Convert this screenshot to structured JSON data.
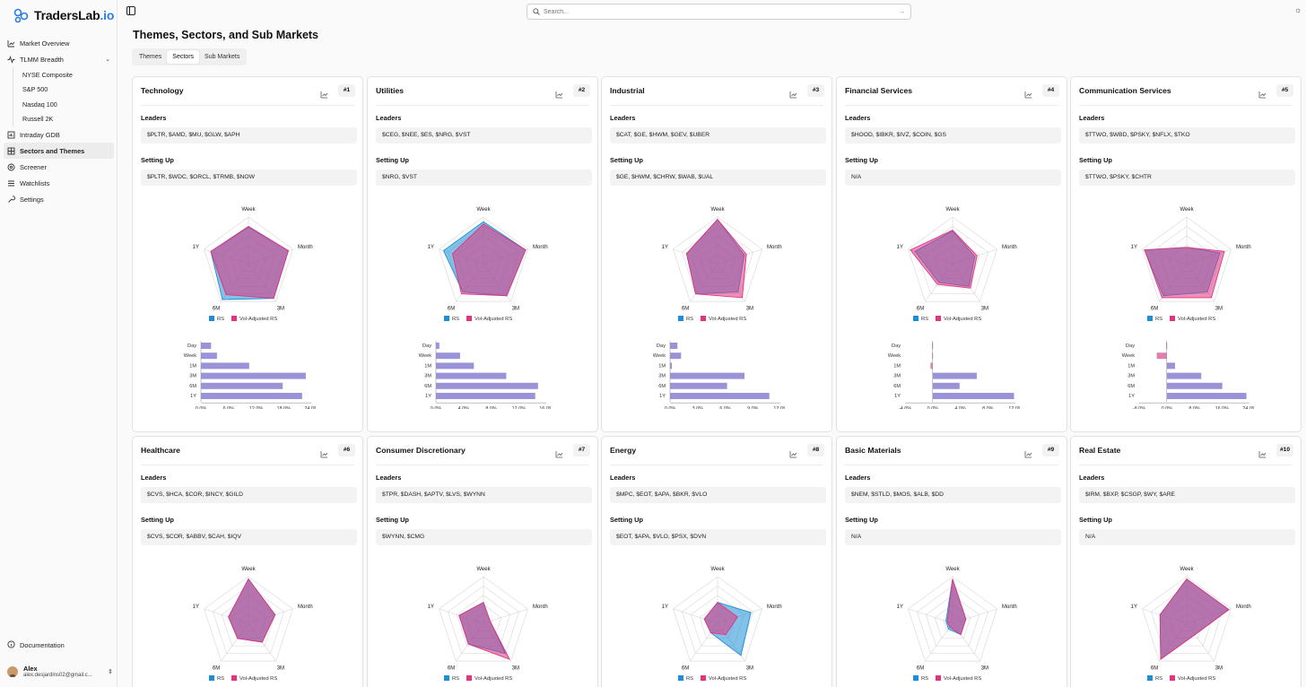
{
  "app": {
    "logo_main": "TradersLab",
    "logo_suffix": ".io"
  },
  "sidebar": {
    "items": [
      {
        "label": "Market Overview",
        "icon": "chart-line-icon"
      },
      {
        "label": "TLMM Breadth",
        "icon": "activity-icon",
        "expanded": true
      },
      {
        "label": "Intraday GDB",
        "icon": "chart-bar-icon"
      },
      {
        "label": "Sectors and Themes",
        "icon": "grid-icon",
        "active": true
      },
      {
        "label": "Screener",
        "icon": "filter-icon"
      },
      {
        "label": "Watchlists",
        "icon": "list-icon"
      },
      {
        "label": "Settings",
        "icon": "wrench-icon"
      }
    ],
    "sub_items": [
      "NYSE Composite",
      "S&P 500",
      "Nasdaq 100",
      "Russell 2K"
    ],
    "documentation": "Documentation",
    "user": {
      "name": "Alex",
      "email": "alex.desjardins02@gmail.c..."
    }
  },
  "search": {
    "placeholder": "Search..."
  },
  "page": {
    "title": "Themes, Sectors, and Sub Markets",
    "tabs": [
      "Themes",
      "Sectors",
      "Sub Markets"
    ],
    "active_tab": "Sectors"
  },
  "labels": {
    "leaders": "Leaders",
    "setting_up": "Setting Up"
  },
  "radar_axes": [
    "Week",
    "Month",
    "3M",
    "6M",
    "1Y"
  ],
  "legend": {
    "rs": "RS",
    "vol_rs": "Vol-Adjusted RS"
  },
  "bar_periods": [
    "Day",
    "Week",
    "1M",
    "3M",
    "6M",
    "1Y"
  ],
  "colors": {
    "rs": "#1e8fd6",
    "vol_rs": "#e0357f",
    "overlap": "#8b7ac7",
    "bar": "#9b93d8"
  },
  "sectors": [
    {
      "name": "Technology",
      "rank": "#1",
      "leaders": "$PLTR, $AMD, $MU, $GLW, $APH",
      "setting_up": "$PLTR, $WDC, $ORCL, $TRMB, $NOW",
      "rs": [
        0.78,
        0.9,
        0.92,
        0.95,
        0.85
      ],
      "vol_rs": [
        0.8,
        0.9,
        0.92,
        0.82,
        0.85
      ],
      "bars": [
        2.2,
        3.5,
        10.5,
        22.8,
        17.8,
        22.0
      ],
      "ticks": [
        "0.0%",
        "6.0%",
        "12.0%",
        "18.0%",
        "24.0%"
      ],
      "xmin": 0,
      "xmax": 24
    },
    {
      "name": "Utilities",
      "rank": "#2",
      "leaders": "$CEG, $NEE, $ES, $NRG, $VST",
      "setting_up": "$NRG, $VST",
      "rs": [
        0.9,
        0.95,
        0.85,
        0.75,
        0.9
      ],
      "vol_rs": [
        0.85,
        0.95,
        0.85,
        0.8,
        0.7
      ],
      "bars": [
        0.5,
        3.5,
        5.5,
        10.2,
        14.8,
        14.4
      ],
      "ticks": [
        "0.0%",
        "4.0%",
        "8.0%",
        "12.0%",
        "16.0%"
      ],
      "xmin": 0,
      "xmax": 16
    },
    {
      "name": "Industrial",
      "rank": "#3",
      "leaders": "$CAT, $GE, $HWM, $GEV, $UBER",
      "setting_up": "$GE, $HWM, $CHRW, $WAB, $UAL",
      "rs": [
        0.95,
        0.6,
        0.75,
        0.8,
        0.7
      ],
      "vol_rs": [
        0.95,
        0.65,
        0.9,
        0.8,
        0.7
      ],
      "bars": [
        0.8,
        1.2,
        0.2,
        8.1,
        6.2,
        10.8
      ],
      "ticks": [
        "0.0%",
        "3.0%",
        "6.0%",
        "9.0%",
        "12.0%"
      ],
      "xmin": 0,
      "xmax": 12
    },
    {
      "name": "Financial Services",
      "rank": "#4",
      "leaders": "$HOOD, $IBKR, $IVZ, $COIN, $GS",
      "setting_up": "N/A",
      "rs": [
        0.7,
        0.5,
        0.6,
        0.5,
        0.85
      ],
      "vol_rs": [
        0.72,
        0.55,
        0.65,
        0.55,
        0.95
      ],
      "bars": [
        -0.1,
        -0.1,
        -0.3,
        6.4,
        3.9,
        11.8
      ],
      "ticks": [
        "-4.0%",
        "0.0%",
        "4.0%",
        "8.0%",
        "12.0%"
      ],
      "xmin": -4,
      "xmax": 12
    },
    {
      "name": "Communication Services",
      "rank": "#5",
      "leaders": "$TTWO, $WBD, $PSKY, $NFLX, $TKO",
      "setting_up": "$TTWO, $PSKY, $CHTR",
      "rs": [
        0.35,
        0.75,
        0.75,
        0.85,
        0.95
      ],
      "vol_rs": [
        0.35,
        0.85,
        0.9,
        0.9,
        0.95
      ],
      "bars": [
        -0.2,
        -2.9,
        2.4,
        10.0,
        16.1,
        23.1
      ],
      "ticks": [
        "-8.0%",
        "0.0%",
        "8.0%",
        "16.0%",
        "24.0%"
      ],
      "xmin": -8,
      "xmax": 24
    },
    {
      "name": "Healthcare",
      "rank": "#6",
      "leaders": "$CVS, $HCA, $COR, $INCY, $GILD",
      "setting_up": "$CVS, $COR, $ABBV, $CAH, $IQV",
      "rs": [
        0.95,
        0.6,
        0.5,
        0.4,
        0.45
      ],
      "vol_rs": [
        0.95,
        0.6,
        0.5,
        0.4,
        0.45
      ]
    },
    {
      "name": "Consumer Discretionary",
      "rank": "#7",
      "leaders": "$TPR, $DASH, $APTV, $LVS, $WYNN",
      "setting_up": "$WYNN, $CMG",
      "rs": [
        0.45,
        0.15,
        0.8,
        0.55,
        0.55
      ],
      "vol_rs": [
        0.45,
        0.15,
        0.95,
        0.55,
        0.55
      ]
    },
    {
      "name": "Energy",
      "rank": "#8",
      "leaders": "$MPC, $EOT, $APA, $BKR, $VLO",
      "setting_up": "$EOT, $APA, $VLO, $PSX, $DVN",
      "rs": [
        0.45,
        0.75,
        0.85,
        0.25,
        0.3
      ],
      "vol_rs": [
        0.45,
        0.45,
        0.3,
        0.25,
        0.3
      ]
    },
    {
      "name": "Basic Materials",
      "rank": "#9",
      "leaders": "$NEM, $STLD, $MOS, $ALB, $DD",
      "setting_up": "N/A",
      "rs": [
        0.95,
        0.3,
        0.3,
        0.15,
        0.15
      ],
      "vol_rs": [
        0.95,
        0.3,
        0.3,
        0.1,
        0.12
      ]
    },
    {
      "name": "Real Estate",
      "rank": "#10",
      "leaders": "$IRM, $BXP, $CSGP, $WY, $ARE",
      "setting_up": "N/A",
      "rs": [
        0.95,
        0.95,
        0.3,
        0.95,
        0.6
      ],
      "vol_rs": [
        0.95,
        0.95,
        0.3,
        0.95,
        0.6
      ]
    }
  ]
}
